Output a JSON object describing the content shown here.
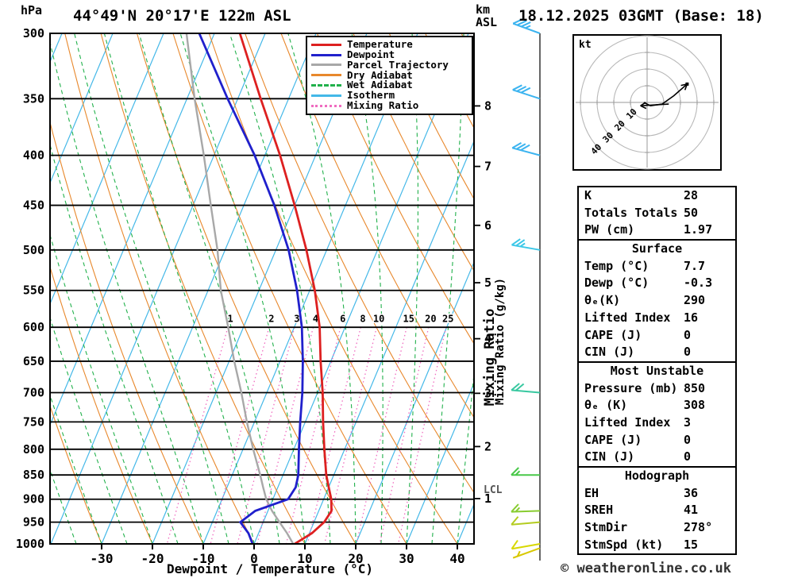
{
  "header": {
    "station_title": "44°49'N 20°17'E 122m ASL",
    "datetime_title": "18.12.2025 03GMT (Base: 18)",
    "pressure_unit": "hPa",
    "km_unit": "km",
    "asl_unit": "ASL"
  },
  "axes": {
    "pressure_ticks": [
      300,
      350,
      400,
      450,
      500,
      550,
      600,
      650,
      700,
      750,
      800,
      850,
      900,
      950,
      1000
    ],
    "temp_ticks": [
      -30,
      -20,
      -10,
      0,
      10,
      20,
      30,
      40
    ],
    "km_ticks": [
      1,
      2,
      3,
      4,
      5,
      6,
      7,
      8
    ],
    "xlabel": "Dewpoint / Temperature (°C)",
    "mixing_ratio_label": "Mixing Ratio (g/kg)",
    "mixing_ratio_watermark": "Mixing Ratio",
    "lcl_label": "LCL"
  },
  "colors": {
    "temperature": "#dd2020",
    "dewpoint": "#2020cc",
    "parcel": "#a8a8a8",
    "dry_adiabat": "#e8882c",
    "wet_adiabat": "#22b14c",
    "isotherm": "#44b8e8",
    "mixing_ratio": "#f06cc0",
    "grid": "#000000"
  },
  "legend": [
    {
      "label": "Temperature",
      "color": "#dd2020",
      "style": "solid"
    },
    {
      "label": "Dewpoint",
      "color": "#2020cc",
      "style": "solid"
    },
    {
      "label": "Parcel Trajectory",
      "color": "#a8a8a8",
      "style": "solid"
    },
    {
      "label": "Dry Adiabat",
      "color": "#e8882c",
      "style": "solid"
    },
    {
      "label": "Wet Adiabat",
      "color": "#22b14c",
      "style": "dashed"
    },
    {
      "label": "Isotherm",
      "color": "#44b8e8",
      "style": "solid"
    },
    {
      "label": "Mixing Ratio",
      "color": "#f06cc0",
      "style": "dotted"
    }
  ],
  "chart_data": {
    "type": "skew-t-log-p",
    "pressure_range_hpa": [
      300,
      1000
    ],
    "temp_axis_range_c": [
      -40,
      43
    ],
    "isotherm_step_c": 10,
    "dry_adiabat_step_c": 10,
    "wet_adiabat_step_c": 5,
    "mixing_ratio_lines_gkg": [
      1,
      2,
      3,
      4,
      6,
      8,
      10,
      15,
      20,
      25
    ],
    "temperature_profile": {
      "pressure_hpa": [
        1000,
        975,
        950,
        925,
        900,
        875,
        850,
        800,
        750,
        700,
        650,
        600,
        550,
        500,
        450,
        400,
        350,
        300
      ],
      "temp_c": [
        8.0,
        10.5,
        12.0,
        12.5,
        11.5,
        10.0,
        8.5,
        6.0,
        3.5,
        1.0,
        -2.0,
        -5.0,
        -9.0,
        -14.0,
        -20.0,
        -27.0,
        -35.5,
        -45.0
      ]
    },
    "dewpoint_profile": {
      "pressure_hpa": [
        1000,
        975,
        950,
        925,
        900,
        875,
        850,
        800,
        750,
        700,
        650,
        600,
        550,
        500,
        450,
        400,
        350,
        300
      ],
      "temp_c": [
        -0.3,
        -2.0,
        -4.5,
        -2.5,
        3.0,
        3.5,
        3.0,
        1.0,
        -1.0,
        -3.0,
        -5.5,
        -8.5,
        -12.5,
        -17.5,
        -24.0,
        -32.0,
        -42.0,
        -53.0
      ]
    },
    "parcel_profile": {
      "pressure_hpa": [
        1000,
        975,
        950,
        925,
        900,
        875,
        850,
        800,
        750,
        700,
        650,
        600,
        550,
        500,
        450,
        400,
        350,
        300
      ],
      "temp_c": [
        7.7,
        5.6,
        3.2,
        0.8,
        -1.3,
        -2.9,
        -4.5,
        -8.0,
        -11.5,
        -15.0,
        -19.0,
        -23.0,
        -27.5,
        -31.5,
        -36.5,
        -42.0,
        -48.5,
        -55.5
      ]
    },
    "winds": [
      {
        "p": 300,
        "kt": 35,
        "dir": 290,
        "color": "#3cb4f0"
      },
      {
        "p": 350,
        "kt": 30,
        "dir": 288,
        "color": "#3cb4f0"
      },
      {
        "p": 400,
        "kt": 30,
        "dir": 285,
        "color": "#3cb4f0"
      },
      {
        "p": 500,
        "kt": 25,
        "dir": 280,
        "color": "#3cc8e8"
      },
      {
        "p": 700,
        "kt": 20,
        "dir": 275,
        "color": "#38c8a0"
      },
      {
        "p": 850,
        "kt": 15,
        "dir": 270,
        "color": "#48c848"
      },
      {
        "p": 925,
        "kt": 15,
        "dir": 268,
        "color": "#88cc30"
      },
      {
        "p": 950,
        "kt": 10,
        "dir": 265,
        "color": "#b4cc20"
      },
      {
        "p": 1000,
        "kt": 10,
        "dir": 260,
        "color": "#d8d800"
      },
      {
        "p": 1010,
        "kt": 5,
        "dir": 250,
        "color": "#d8c800"
      }
    ]
  },
  "hodograph": {
    "unit_label": "kt",
    "ring_labels": [
      10,
      20,
      30,
      40
    ],
    "trace_kt": [
      [
        -2,
        0
      ],
      [
        2,
        -2
      ],
      [
        9,
        -1
      ],
      [
        16,
        4
      ],
      [
        24,
        11
      ]
    ],
    "storm_arrow": {
      "from": [
        13,
        -1
      ],
      "to": [
        -4,
        -2
      ]
    }
  },
  "panel": {
    "sections": [
      {
        "header": null,
        "rows": [
          [
            "K",
            "28"
          ],
          [
            "Totals Totals",
            "50"
          ],
          [
            "PW (cm)",
            "1.97"
          ]
        ]
      },
      {
        "header": "Surface",
        "rows": [
          [
            "Temp (°C)",
            "7.7"
          ],
          [
            "Dewp (°C)",
            "-0.3"
          ],
          [
            "θₑ(K)",
            "290"
          ],
          [
            "Lifted Index",
            "16"
          ],
          [
            "CAPE (J)",
            "0"
          ],
          [
            "CIN (J)",
            "0"
          ]
        ]
      },
      {
        "header": "Most Unstable",
        "rows": [
          [
            "Pressure (mb)",
            "850"
          ],
          [
            "θₑ (K)",
            "308"
          ],
          [
            "Lifted Index",
            "3"
          ],
          [
            "CAPE (J)",
            "0"
          ],
          [
            "CIN (J)",
            "0"
          ]
        ]
      },
      {
        "header": "Hodograph",
        "rows": [
          [
            "EH",
            "36"
          ],
          [
            "SREH",
            "41"
          ],
          [
            "StmDir",
            "278°"
          ],
          [
            "StmSpd (kt)",
            "15"
          ]
        ]
      }
    ]
  },
  "footer": {
    "copyright": "© weatheronline.co.uk"
  }
}
